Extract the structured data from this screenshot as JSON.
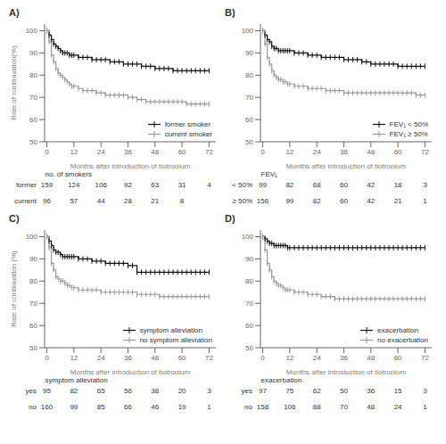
{
  "chart_data": [
    {
      "type": "line",
      "title": "A)",
      "x_label": "Months after introduction of tiotropium",
      "y_label": "Rate of continuation(%)",
      "xlim": [
        -1,
        75
      ],
      "xticks": [
        0,
        12,
        24,
        36,
        48,
        60,
        72
      ],
      "ylim": [
        50,
        103
      ],
      "yticks": [
        50,
        60,
        70,
        80,
        90,
        100
      ],
      "grid": false,
      "legend": "lower right",
      "series": [
        {
          "name": "former smoker",
          "color": "#111111",
          "line_style": "step",
          "marker": "tick",
          "x": [
            0,
            1,
            2,
            3,
            4,
            5,
            6,
            7,
            8,
            9,
            10,
            11,
            12,
            14,
            16,
            18,
            20,
            22,
            24,
            26,
            28,
            30,
            32,
            34,
            36,
            38,
            40,
            42,
            44,
            46,
            48,
            50,
            52,
            54,
            56,
            58,
            60,
            62,
            64,
            66,
            68,
            70,
            72
          ],
          "values": [
            100,
            98,
            96,
            94,
            93,
            92,
            91,
            90,
            90,
            90,
            89,
            89,
            89,
            88,
            88,
            88,
            87,
            87,
            87,
            87,
            86,
            86,
            86,
            85,
            85,
            85,
            85,
            84,
            84,
            84,
            83,
            83,
            83,
            83,
            82,
            82,
            82,
            82,
            82,
            82,
            82,
            82,
            82
          ]
        },
        {
          "name": "current smoker",
          "color": "#999999",
          "line_style": "step",
          "marker": "tick",
          "x": [
            0,
            1,
            2,
            3,
            4,
            5,
            6,
            7,
            8,
            9,
            10,
            11,
            12,
            14,
            16,
            18,
            20,
            22,
            24,
            26,
            28,
            30,
            32,
            34,
            36,
            38,
            40,
            42,
            44,
            46,
            48,
            50,
            52,
            54,
            56,
            58,
            60,
            62,
            64,
            66,
            68,
            70,
            72
          ],
          "values": [
            100,
            95,
            89,
            86,
            83,
            81,
            80,
            79,
            78,
            77,
            76,
            75,
            75,
            74,
            73,
            73,
            73,
            72,
            72,
            71,
            71,
            71,
            71,
            71,
            70,
            70,
            69,
            69,
            68,
            68,
            68,
            68,
            68,
            68,
            68,
            68,
            68,
            67,
            67,
            67,
            67,
            67,
            67
          ]
        }
      ],
      "table": {
        "title": "no. of smokers",
        "rows": [
          {
            "label": "former",
            "values": [
              159,
              124,
              106,
              92,
              63,
              31,
              4
            ]
          },
          {
            "label": "current",
            "values": [
              96,
              57,
              44,
              28,
              21,
              8,
              null
            ]
          }
        ]
      }
    },
    {
      "type": "line",
      "title": "B)",
      "x_label": "Months after introduction of tiotropium",
      "xlim": [
        -1,
        75
      ],
      "xticks": [
        0,
        12,
        24,
        36,
        48,
        60,
        72
      ],
      "ylim": [
        50,
        103
      ],
      "yticks": [
        50,
        60,
        70,
        80,
        90,
        100
      ],
      "grid": false,
      "legend": "lower right",
      "series": [
        {
          "name": "FEV₁ < 50%",
          "color": "#111111",
          "line_style": "step",
          "marker": "tick",
          "x": [
            0,
            1,
            2,
            3,
            4,
            5,
            6,
            7,
            8,
            9,
            10,
            11,
            12,
            14,
            16,
            18,
            20,
            22,
            24,
            26,
            28,
            30,
            32,
            34,
            36,
            38,
            40,
            42,
            44,
            46,
            48,
            50,
            52,
            54,
            56,
            58,
            60,
            62,
            64,
            66,
            68,
            70,
            72
          ],
          "values": [
            100,
            98,
            96,
            95,
            93,
            92,
            92,
            91,
            91,
            91,
            91,
            91,
            91,
            90,
            90,
            90,
            89,
            89,
            89,
            88,
            88,
            88,
            88,
            88,
            87,
            87,
            87,
            87,
            86,
            86,
            85,
            85,
            85,
            85,
            85,
            85,
            84,
            84,
            84,
            84,
            84,
            84,
            84
          ]
        },
        {
          "name": "FEV₁ ≥ 50%",
          "color": "#999999",
          "line_style": "step",
          "marker": "tick",
          "x": [
            0,
            1,
            2,
            3,
            4,
            5,
            6,
            7,
            8,
            9,
            10,
            11,
            12,
            14,
            16,
            18,
            20,
            22,
            24,
            26,
            28,
            30,
            32,
            34,
            36,
            38,
            40,
            42,
            44,
            46,
            48,
            50,
            52,
            54,
            56,
            58,
            60,
            62,
            64,
            66,
            68,
            70,
            72
          ],
          "values": [
            100,
            94,
            88,
            85,
            82,
            80,
            79,
            78,
            78,
            77,
            77,
            76,
            76,
            75,
            75,
            75,
            74,
            74,
            74,
            74,
            73,
            73,
            73,
            73,
            72,
            72,
            72,
            72,
            72,
            72,
            72,
            72,
            72,
            72,
            72,
            72,
            72,
            72,
            72,
            72,
            71,
            71,
            71
          ]
        }
      ],
      "table": {
        "title": "FEV₁",
        "rows": [
          {
            "label": "< 50%",
            "values": [
              99,
              82,
              68,
              60,
              42,
              18,
              3
            ]
          },
          {
            "label": "≥ 50%",
            "values": [
              156,
              99,
              82,
              60,
              42,
              21,
              1
            ]
          }
        ]
      }
    },
    {
      "type": "line",
      "title": "C)",
      "x_label": "Months after introduction of tiotropium",
      "y_label": "Rate of continuation (%)",
      "xlim": [
        -1,
        75
      ],
      "xticks": [
        0,
        12,
        24,
        36,
        48,
        60,
        72
      ],
      "ylim": [
        50,
        103
      ],
      "yticks": [
        50,
        60,
        70,
        80,
        90,
        100
      ],
      "grid": false,
      "legend": "lower right",
      "series": [
        {
          "name": "symptom alleviation",
          "color": "#111111",
          "line_style": "step",
          "marker": "tick",
          "x": [
            0,
            1,
            2,
            3,
            4,
            5,
            6,
            7,
            8,
            9,
            10,
            11,
            12,
            14,
            16,
            18,
            20,
            22,
            24,
            26,
            28,
            30,
            32,
            34,
            36,
            38,
            40,
            42,
            44,
            46,
            48,
            50,
            52,
            54,
            56,
            58,
            60,
            62,
            64,
            66,
            68,
            70,
            72
          ],
          "values": [
            100,
            98,
            96,
            94,
            93,
            93,
            92,
            91,
            91,
            91,
            91,
            91,
            91,
            90,
            90,
            90,
            89,
            89,
            89,
            88,
            88,
            88,
            88,
            88,
            87,
            87,
            84,
            84,
            84,
            84,
            84,
            84,
            84,
            84,
            84,
            84,
            84,
            84,
            84,
            84,
            84,
            84,
            84
          ]
        },
        {
          "name": "no symptom alleviation",
          "color": "#999999",
          "line_style": "step",
          "marker": "tick",
          "x": [
            0,
            1,
            2,
            3,
            4,
            5,
            6,
            7,
            8,
            9,
            10,
            11,
            12,
            14,
            16,
            18,
            20,
            22,
            24,
            26,
            28,
            30,
            32,
            34,
            36,
            38,
            40,
            42,
            44,
            46,
            48,
            50,
            52,
            54,
            56,
            58,
            60,
            62,
            64,
            66,
            68,
            70,
            72
          ],
          "values": [
            100,
            95,
            88,
            85,
            82,
            81,
            80,
            80,
            79,
            78,
            78,
            77,
            77,
            76,
            76,
            76,
            76,
            76,
            75,
            75,
            75,
            75,
            75,
            75,
            75,
            75,
            74,
            74,
            74,
            74,
            74,
            73,
            73,
            73,
            73,
            73,
            73,
            73,
            73,
            73,
            73,
            73,
            73
          ]
        }
      ],
      "table": {
        "title": "symptom alleviation",
        "rows": [
          {
            "label": "yes",
            "values": [
              95,
              82,
              65,
              56,
              38,
              20,
              3
            ]
          },
          {
            "label": "no",
            "values": [
              160,
              99,
              85,
              66,
              46,
              19,
              1
            ]
          }
        ]
      }
    },
    {
      "type": "line",
      "title": "D)",
      "x_label": "Months after introduction of tiotropium",
      "xlim": [
        -1,
        75
      ],
      "xticks": [
        0,
        12,
        24,
        36,
        48,
        60,
        72
      ],
      "ylim": [
        50,
        103
      ],
      "yticks": [
        50,
        60,
        70,
        80,
        90,
        100
      ],
      "grid": false,
      "legend": "lower right",
      "series": [
        {
          "name": "exacerbation",
          "color": "#111111",
          "line_style": "step",
          "marker": "tick",
          "x": [
            0,
            1,
            2,
            3,
            4,
            5,
            6,
            7,
            8,
            9,
            10,
            11,
            12,
            14,
            16,
            18,
            20,
            22,
            24,
            26,
            28,
            30,
            32,
            34,
            36,
            38,
            40,
            42,
            44,
            46,
            48,
            50,
            52,
            54,
            56,
            58,
            60,
            62,
            64,
            66,
            68,
            70,
            72
          ],
          "values": [
            100,
            99,
            98,
            97,
            97,
            96,
            96,
            96,
            96,
            96,
            96,
            95,
            95,
            95,
            95,
            95,
            95,
            95,
            95,
            95,
            95,
            95,
            95,
            95,
            95,
            95,
            95,
            95,
            95,
            95,
            95,
            95,
            95,
            95,
            95,
            95,
            95,
            95,
            95,
            95,
            95,
            95,
            95
          ]
        },
        {
          "name": "no exacerbation",
          "color": "#999999",
          "line_style": "step",
          "marker": "tick",
          "x": [
            0,
            1,
            2,
            3,
            4,
            5,
            6,
            7,
            8,
            9,
            10,
            11,
            12,
            14,
            16,
            18,
            20,
            22,
            24,
            26,
            28,
            30,
            32,
            34,
            36,
            38,
            40,
            42,
            44,
            46,
            48,
            50,
            52,
            54,
            56,
            58,
            60,
            62,
            64,
            66,
            68,
            70,
            72
          ],
          "values": [
            100,
            94,
            88,
            85,
            82,
            80,
            79,
            78,
            78,
            77,
            76,
            76,
            76,
            75,
            75,
            75,
            74,
            74,
            74,
            73,
            73,
            73,
            72,
            72,
            72,
            72,
            72,
            72,
            72,
            72,
            72,
            72,
            72,
            72,
            72,
            72,
            72,
            72,
            72,
            72,
            72,
            72,
            72
          ]
        }
      ],
      "table": {
        "title": "exacerbation",
        "rows": [
          {
            "label": "yes",
            "values": [
              97,
              75,
              62,
              50,
              36,
              15,
              3
            ]
          },
          {
            "label": "no",
            "values": [
              158,
              106,
              88,
              70,
              48,
              24,
              1
            ]
          }
        ]
      }
    }
  ]
}
